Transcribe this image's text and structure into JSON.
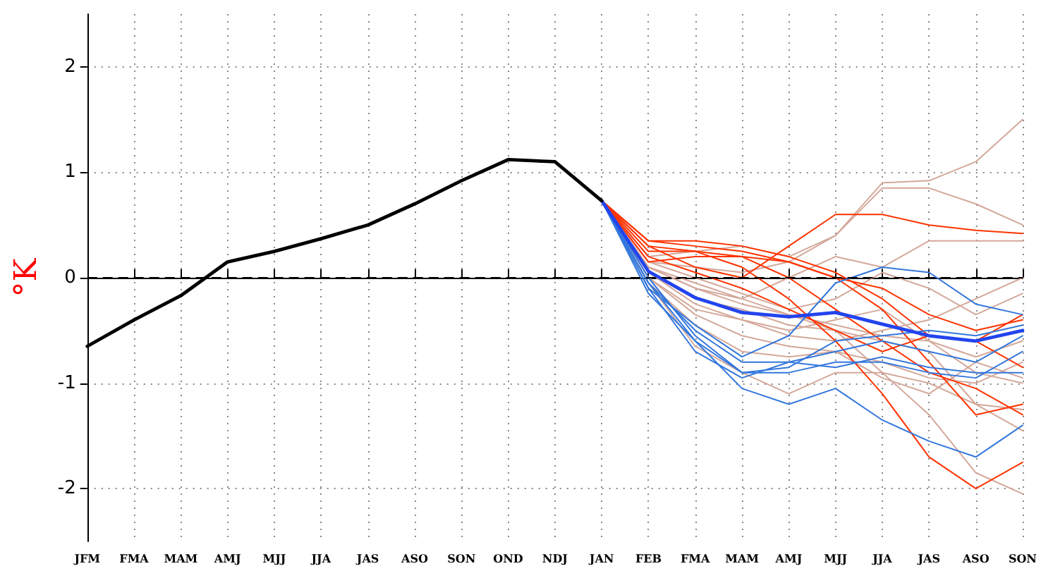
{
  "chart_data": {
    "type": "line",
    "ylabel": "°K",
    "categories": [
      "JFM",
      "FMA",
      "MAM",
      "AMJ",
      "MJJ",
      "JJA",
      "JAS",
      "ASO",
      "SON",
      "OND",
      "NDJ",
      "JAN",
      "FEB",
      "FMA",
      "MAM",
      "AMJ",
      "MJJ",
      "JJA",
      "JAS",
      "ASO",
      "SON"
    ],
    "ylim": [
      -2.5,
      2.5
    ],
    "yticks": [
      -2,
      -1,
      0,
      1,
      2
    ],
    "grid": true,
    "marker": "none",
    "line_style": "solid",
    "ref_lines": [
      {
        "axis": "y",
        "value": 0,
        "color": "#000000",
        "line_style": "dashed"
      }
    ],
    "series": [
      {
        "color": "#000000",
        "values": [
          -0.65,
          -0.4,
          -0.17,
          0.15,
          0.25,
          0.37,
          0.5,
          0.7,
          0.92,
          1.12,
          1.1,
          0.73,
          null,
          null,
          null,
          null,
          null,
          null,
          null,
          null,
          null
        ]
      },
      {
        "color": "#2244ee",
        "values": [
          null,
          null,
          null,
          null,
          null,
          null,
          null,
          null,
          null,
          null,
          null,
          0.73,
          0.06,
          -0.19,
          -0.33,
          -0.37,
          -0.33,
          -0.44,
          -0.55,
          -0.6,
          -0.5
        ]
      },
      {
        "color": "#3377dd",
        "values": [
          null,
          null,
          null,
          null,
          null,
          null,
          null,
          null,
          null,
          null,
          null,
          0.73,
          -0.05,
          -0.6,
          -0.9,
          -0.85,
          -0.6,
          -0.55,
          -0.5,
          -0.55,
          -0.45
        ]
      },
      {
        "color": "#3377dd",
        "values": [
          null,
          null,
          null,
          null,
          null,
          null,
          null,
          null,
          null,
          null,
          null,
          0.73,
          -0.15,
          -0.6,
          -1.05,
          -1.2,
          -1.05,
          -1.35,
          -1.55,
          -1.7,
          -1.4
        ]
      },
      {
        "color": "#3377dd",
        "values": [
          null,
          null,
          null,
          null,
          null,
          null,
          null,
          null,
          null,
          null,
          null,
          0.73,
          -0.1,
          -0.45,
          -0.75,
          -0.55,
          -0.05,
          0.1,
          0.05,
          -0.25,
          -0.35
        ]
      },
      {
        "color": "#3377dd",
        "values": [
          null,
          null,
          null,
          null,
          null,
          null,
          null,
          null,
          null,
          null,
          null,
          0.73,
          0.0,
          -0.55,
          -0.9,
          -0.9,
          -0.8,
          -0.8,
          -0.9,
          -0.95,
          -0.7
        ]
      },
      {
        "color": "#3377dd",
        "values": [
          null,
          null,
          null,
          null,
          null,
          null,
          null,
          null,
          null,
          null,
          null,
          0.73,
          -0.1,
          -0.7,
          -0.95,
          -0.8,
          -0.7,
          -0.6,
          -0.7,
          -0.8,
          -0.55
        ]
      },
      {
        "color": "#3377dd",
        "values": [
          null,
          null,
          null,
          null,
          null,
          null,
          null,
          null,
          null,
          null,
          null,
          0.73,
          -0.05,
          -0.5,
          -0.8,
          -0.8,
          -0.85,
          -0.75,
          -0.85,
          -0.9,
          -0.9
        ]
      },
      {
        "color": "#ff3300",
        "values": [
          null,
          null,
          null,
          null,
          null,
          null,
          null,
          null,
          null,
          null,
          null,
          0.73,
          0.3,
          0.1,
          0.0,
          0.3,
          0.6,
          0.6,
          0.5,
          0.45,
          0.42
        ]
      },
      {
        "color": "#ff3300",
        "values": [
          null,
          null,
          null,
          null,
          null,
          null,
          null,
          null,
          null,
          null,
          null,
          0.73,
          0.35,
          0.3,
          0.25,
          0.15,
          0.0,
          -0.1,
          -0.35,
          -0.5,
          -0.4
        ]
      },
      {
        "color": "#ff3300",
        "values": [
          null,
          null,
          null,
          null,
          null,
          null,
          null,
          null,
          null,
          null,
          null,
          0.73,
          0.3,
          0.25,
          0.1,
          -0.2,
          -0.6,
          -1.1,
          -1.7,
          -2.0,
          -1.75
        ]
      },
      {
        "color": "#ff3300",
        "values": [
          null,
          null,
          null,
          null,
          null,
          null,
          null,
          null,
          null,
          null,
          null,
          0.73,
          0.25,
          0.25,
          0.2,
          0.0,
          -0.3,
          -0.6,
          -0.9,
          -1.05,
          -1.3
        ]
      },
      {
        "color": "#ff3300",
        "values": [
          null,
          null,
          null,
          null,
          null,
          null,
          null,
          null,
          null,
          null,
          null,
          0.73,
          0.2,
          0.05,
          -0.1,
          -0.3,
          -0.5,
          -0.7,
          -0.55,
          -0.6,
          -0.35
        ]
      },
      {
        "color": "#ff3300",
        "values": [
          null,
          null,
          null,
          null,
          null,
          null,
          null,
          null,
          null,
          null,
          null,
          0.73,
          0.35,
          0.35,
          0.3,
          0.2,
          0.05,
          -0.2,
          -0.55,
          -0.6,
          -0.85
        ]
      },
      {
        "color": "#ff3300",
        "values": [
          null,
          null,
          null,
          null,
          null,
          null,
          null,
          null,
          null,
          null,
          null,
          0.73,
          0.15,
          0.2,
          0.2,
          0.15,
          0.0,
          -0.3,
          -0.8,
          -1.3,
          -1.2
        ]
      },
      {
        "color": "#d4a89a",
        "values": [
          null,
          null,
          null,
          null,
          null,
          null,
          null,
          null,
          null,
          null,
          null,
          0.73,
          0.2,
          0.25,
          0.3,
          0.2,
          0.4,
          0.9,
          0.92,
          1.1,
          1.5
        ]
      },
      {
        "color": "#d4a89a",
        "values": [
          null,
          null,
          null,
          null,
          null,
          null,
          null,
          null,
          null,
          null,
          null,
          0.73,
          0.15,
          0.1,
          0.05,
          0.15,
          0.4,
          0.85,
          0.85,
          0.7,
          0.5
        ]
      },
      {
        "color": "#d4a89a",
        "values": [
          null,
          null,
          null,
          null,
          null,
          null,
          null,
          null,
          null,
          null,
          null,
          0.73,
          0.1,
          -0.1,
          -0.2,
          0.0,
          0.2,
          0.1,
          0.35,
          0.35,
          0.35
        ]
      },
      {
        "color": "#d4a89a",
        "values": [
          null,
          null,
          null,
          null,
          null,
          null,
          null,
          null,
          null,
          null,
          null,
          0.73,
          0.0,
          -0.3,
          -0.4,
          -0.5,
          -0.4,
          -0.3,
          -0.6,
          -0.9,
          -1.0
        ]
      },
      {
        "color": "#d4a89a",
        "values": [
          null,
          null,
          null,
          null,
          null,
          null,
          null,
          null,
          null,
          null,
          null,
          0.73,
          0.05,
          -0.2,
          -0.3,
          -0.45,
          -0.5,
          -0.6,
          -0.7,
          -1.2,
          -1.45
        ]
      },
      {
        "color": "#d4a89a",
        "values": [
          null,
          null,
          null,
          null,
          null,
          null,
          null,
          null,
          null,
          null,
          null,
          0.73,
          -0.05,
          -0.65,
          -0.9,
          -1.1,
          -0.9,
          -0.9,
          -1.0,
          -1.2,
          -1.25
        ]
      },
      {
        "color": "#d4a89a",
        "values": [
          null,
          null,
          null,
          null,
          null,
          null,
          null,
          null,
          null,
          null,
          null,
          0.73,
          0.1,
          -0.1,
          -0.25,
          -0.35,
          -0.5,
          -0.9,
          -1.3,
          -1.85,
          -2.05
        ]
      },
      {
        "color": "#d4a89a",
        "values": [
          null,
          null,
          null,
          null,
          null,
          null,
          null,
          null,
          null,
          null,
          null,
          0.73,
          0.05,
          -0.25,
          -0.4,
          -0.55,
          -0.6,
          -0.5,
          -0.4,
          -0.2,
          0.0
        ]
      },
      {
        "color": "#d4a89a",
        "values": [
          null,
          null,
          null,
          null,
          null,
          null,
          null,
          null,
          null,
          null,
          null,
          0.73,
          0.15,
          0.0,
          -0.15,
          -0.3,
          -0.2,
          0.05,
          -0.1,
          -0.35,
          -0.15
        ]
      },
      {
        "color": "#d4a89a",
        "values": [
          null,
          null,
          null,
          null,
          null,
          null,
          null,
          null,
          null,
          null,
          null,
          0.73,
          0.0,
          -0.35,
          -0.55,
          -0.65,
          -0.7,
          -0.8,
          -0.95,
          -1.0,
          -0.8
        ]
      },
      {
        "color": "#d4a89a",
        "values": [
          null,
          null,
          null,
          null,
          null,
          null,
          null,
          null,
          null,
          null,
          null,
          0.73,
          0.1,
          -0.05,
          -0.2,
          -0.35,
          -0.45,
          -0.55,
          -0.6,
          -0.75,
          -0.6
        ]
      },
      {
        "color": "#d4a89a",
        "values": [
          null,
          null,
          null,
          null,
          null,
          null,
          null,
          null,
          null,
          null,
          null,
          0.73,
          -0.05,
          -0.45,
          -0.7,
          -0.75,
          -0.7,
          -0.95,
          -1.1,
          -0.8,
          -0.95
        ]
      }
    ]
  }
}
